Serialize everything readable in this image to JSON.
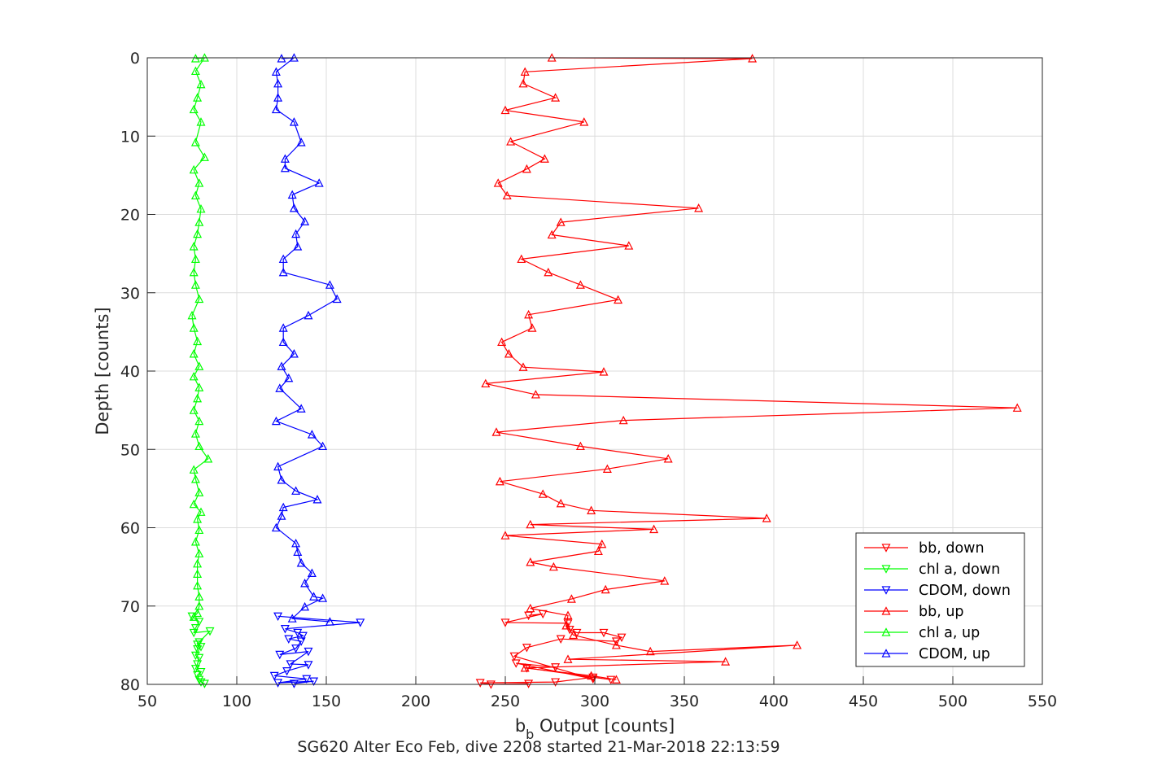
{
  "chart_data": {
    "type": "line",
    "title": "SG620 Alter Eco Feb, dive 2208 started 21-Mar-2018 22:13:59",
    "xlabel": "b",
    "xlabel_sub": "b",
    "xlabel_rest": " Output [counts]",
    "ylabel": "Depth [counts]",
    "xlim": [
      50,
      550
    ],
    "ylim": [
      0,
      80
    ],
    "y_reversed": true,
    "grid": true,
    "legend_position": "bottom-right",
    "x_ticks": [
      "50",
      "100",
      "150",
      "200",
      "250",
      "300",
      "350",
      "400",
      "450",
      "500",
      "550"
    ],
    "y_ticks": [
      "0",
      "10",
      "20",
      "30",
      "40",
      "50",
      "60",
      "70",
      "80"
    ],
    "colors": {
      "bb": "#ff0000",
      "chl": "#00ff00",
      "cdom": "#0000ff"
    },
    "series": [
      {
        "name": "bb, down",
        "color": "#ff0000",
        "marker": "triangle-down",
        "x": [
          263,
          271,
          250,
          285,
          286,
          290,
          305,
          315,
          312,
          281,
          262,
          255,
          299,
          256,
          278,
          262,
          309,
          299,
          278,
          236,
          242,
          263
        ],
        "y": [
          71.2,
          71.0,
          72.1,
          72.2,
          73.0,
          73.4,
          73.4,
          74.0,
          74.5,
          74.2,
          75.3,
          76.4,
          79.3,
          77.3,
          77.8,
          77.9,
          79.4,
          79.1,
          79.7,
          79.8,
          80.0,
          79.9
        ]
      },
      {
        "name": "chl a, down",
        "color": "#00ff00",
        "marker": "triangle-down",
        "x": [
          75,
          79,
          77,
          76,
          85,
          79,
          78,
          80,
          78,
          77,
          79,
          78,
          77,
          80,
          78,
          79,
          80,
          82
        ],
        "y": [
          71.3,
          72.0,
          72.8,
          73.4,
          73.2,
          74.6,
          74.9,
          75.2,
          75.5,
          76.3,
          76.6,
          77.4,
          78.0,
          78.4,
          78.8,
          79.4,
          79.7,
          79.9
        ]
      },
      {
        "name": "CDOM, down",
        "color": "#0000ff",
        "marker": "triangle-down",
        "x": [
          123,
          169,
          127,
          134,
          137,
          129,
          136,
          133,
          124,
          140,
          130,
          140,
          128,
          121,
          139,
          123,
          143,
          132
        ],
        "y": [
          71.3,
          72.1,
          72.9,
          73.4,
          73.8,
          74.2,
          74.5,
          75.4,
          76.2,
          75.8,
          77.4,
          77.5,
          78.3,
          78.9,
          79.3,
          79.8,
          79.6,
          79.9
        ]
      },
      {
        "name": "bb, up",
        "color": "#ff0000",
        "marker": "triangle-up",
        "x": [
          276,
          388,
          261,
          260,
          278,
          250,
          294,
          253,
          272,
          262,
          246,
          251,
          358,
          281,
          276,
          319,
          259,
          274,
          292,
          313,
          263,
          265,
          248,
          252,
          260,
          305,
          239,
          267,
          536,
          316,
          245,
          292,
          341,
          307,
          247,
          271,
          281,
          298,
          396,
          264,
          333,
          250,
          304,
          302,
          264,
          277,
          339,
          306,
          287,
          264,
          285,
          284,
          288,
          312,
          331,
          413,
          285,
          373,
          261,
          298,
          312
        ],
        "y": [
          0.0,
          0.1,
          1.8,
          3.3,
          5.1,
          6.7,
          8.2,
          10.7,
          12.9,
          14.2,
          16.0,
          17.6,
          19.2,
          21.0,
          22.6,
          24.0,
          25.7,
          27.4,
          29.0,
          30.9,
          32.8,
          34.5,
          36.3,
          37.8,
          39.5,
          40.1,
          41.6,
          43.0,
          44.7,
          46.3,
          47.8,
          49.6,
          51.2,
          52.5,
          54.1,
          55.7,
          56.9,
          57.8,
          58.8,
          59.6,
          60.2,
          61.0,
          62.1,
          63.0,
          64.4,
          65.0,
          66.8,
          67.9,
          69.1,
          70.3,
          71.2,
          72.5,
          73.7,
          75.0,
          75.8,
          75.0,
          76.8,
          77.1,
          77.9,
          78.9,
          79.4
        ]
      },
      {
        "name": "chl a, up",
        "color": "#00ff00",
        "marker": "triangle-up",
        "x": [
          77,
          82,
          77,
          80,
          78,
          76,
          80,
          77,
          82,
          76,
          79,
          77,
          80,
          79,
          78,
          76,
          77,
          76,
          77,
          79,
          75,
          76,
          78,
          76,
          79,
          76,
          79,
          78,
          76,
          79,
          77,
          79,
          84,
          76,
          77,
          79,
          76,
          80,
          78,
          79,
          77,
          79,
          78,
          78,
          78,
          79,
          79,
          78,
          76
        ],
        "y": [
          0.1,
          0.0,
          1.7,
          3.4,
          5.1,
          6.6,
          8.2,
          10.8,
          12.7,
          14.3,
          16.0,
          17.6,
          19.3,
          21.0,
          22.5,
          24.1,
          25.7,
          27.4,
          29.0,
          30.8,
          32.9,
          34.5,
          36.2,
          37.8,
          39.4,
          40.7,
          42.1,
          43.5,
          45.0,
          46.4,
          48.0,
          49.6,
          51.2,
          52.6,
          53.8,
          55.5,
          57.0,
          58.0,
          58.9,
          60.3,
          61.8,
          63.3,
          64.6,
          65.9,
          67.4,
          68.8,
          70.0,
          70.9,
          71.4
        ]
      },
      {
        "name": "CDOM, up",
        "color": "#0000ff",
        "marker": "triangle-up",
        "x": [
          125,
          132,
          122,
          123,
          123,
          122,
          132,
          136,
          127,
          127,
          146,
          131,
          132,
          138,
          133,
          134,
          126,
          126,
          152,
          156,
          140,
          126,
          126,
          132,
          125,
          129,
          124,
          136,
          122,
          142,
          148,
          123,
          125,
          133,
          145,
          126,
          125,
          122,
          133,
          134,
          136,
          142,
          138,
          143,
          148,
          138,
          131,
          152
        ],
        "y": [
          0.1,
          0.0,
          1.8,
          3.3,
          5.1,
          6.6,
          8.2,
          10.8,
          12.9,
          14.1,
          16.0,
          17.5,
          19.2,
          20.9,
          22.5,
          24.1,
          25.7,
          27.4,
          29.0,
          30.8,
          32.9,
          34.5,
          36.3,
          37.8,
          39.4,
          40.9,
          42.2,
          44.8,
          46.4,
          48.1,
          49.6,
          52.2,
          53.9,
          55.3,
          56.4,
          57.4,
          58.5,
          60.0,
          62.0,
          63.1,
          64.5,
          65.8,
          67.1,
          68.8,
          69.0,
          70.1,
          71.6,
          72.0
        ]
      }
    ]
  }
}
